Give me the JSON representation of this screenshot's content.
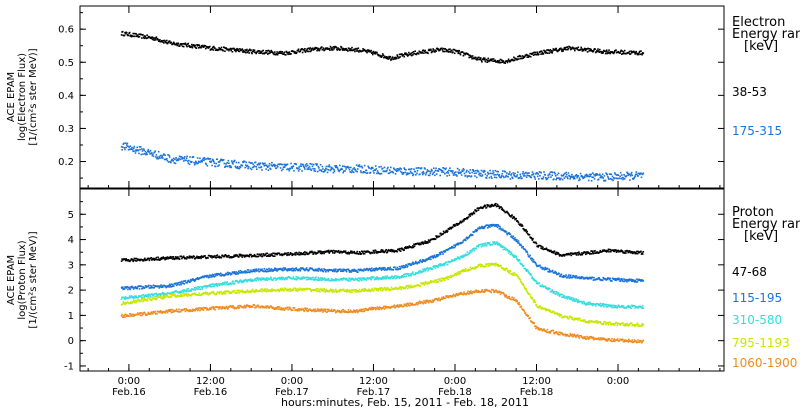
{
  "chart_data": [
    {
      "type": "scatter",
      "panel": "electron",
      "ylabel_lines": [
        "ACE EPAM",
        "log(Electron Flux)",
        "[1/(cm²s ster MeV)]"
      ],
      "ylim": [
        0.12,
        0.67
      ],
      "yticks": [
        0.2,
        0.3,
        0.4,
        0.5,
        0.6
      ],
      "ytick_labels": [
        "0.2",
        "0.3",
        "0.4",
        "0.5",
        "0.6"
      ],
      "legend_title_lines": [
        "Electron",
        "Energy ran",
        "[keV]"
      ],
      "legend_placement": "right",
      "series": [
        {
          "name": "38-53",
          "color": "#000000",
          "x": [
            -0.1,
            0.3,
            0.5,
            1.0,
            1.5,
            1.9,
            2.2,
            2.5,
            2.8,
            3.0,
            3.2,
            3.5,
            3.8,
            4.0,
            4.3,
            4.6,
            5.0,
            5.4,
            5.8,
            6.3
          ],
          "y": [
            0.59,
            0.575,
            0.56,
            0.545,
            0.535,
            0.53,
            0.54,
            0.545,
            0.54,
            0.53,
            0.515,
            0.53,
            0.54,
            0.535,
            0.51,
            0.505,
            0.53,
            0.545,
            0.535,
            0.53
          ]
        },
        {
          "name": "175-315",
          "color": "#1a73d9",
          "x": [
            -0.1,
            0.3,
            0.5,
            1.0,
            1.5,
            1.9,
            2.2,
            2.5,
            2.8,
            3.0,
            3.2,
            3.5,
            3.8,
            4.0,
            4.3,
            4.6,
            5.0,
            5.4,
            5.8,
            6.3
          ],
          "y": [
            0.25,
            0.225,
            0.21,
            0.2,
            0.19,
            0.185,
            0.185,
            0.18,
            0.18,
            0.178,
            0.175,
            0.172,
            0.172,
            0.17,
            0.165,
            0.162,
            0.16,
            0.158,
            0.155,
            0.16
          ]
        }
      ]
    },
    {
      "type": "scatter",
      "panel": "proton",
      "ylabel_lines": [
        "ACE EPAM",
        "log(Proton Flux)",
        "[1/(cm²s ster MeV)]"
      ],
      "ylim": [
        -1.2,
        6.0
      ],
      "yticks": [
        -1,
        0,
        1,
        2,
        3,
        4,
        5
      ],
      "ytick_labels": [
        "-1",
        "0",
        "1",
        "2",
        "3",
        "4",
        "5"
      ],
      "legend_title_lines": [
        "Proton",
        "Energy ran",
        "[keV]"
      ],
      "legend_placement": "right",
      "series": [
        {
          "name": "47-68",
          "color": "#000000",
          "x": [
            -0.1,
            0.5,
            1.0,
            1.5,
            1.9,
            2.2,
            2.5,
            2.8,
            3.0,
            3.3,
            3.5,
            3.7,
            3.9,
            4.1,
            4.3,
            4.5,
            4.75,
            5.0,
            5.3,
            5.6,
            5.9,
            6.3
          ],
          "y": [
            3.2,
            3.3,
            3.35,
            3.4,
            3.45,
            3.5,
            3.55,
            3.5,
            3.55,
            3.6,
            3.8,
            4.0,
            4.4,
            4.8,
            5.3,
            5.4,
            4.8,
            3.8,
            3.4,
            3.5,
            3.6,
            3.5
          ]
        },
        {
          "name": "115-195",
          "color": "#1a73d9",
          "x": [
            -0.1,
            0.5,
            1.0,
            1.5,
            1.9,
            2.2,
            2.5,
            2.8,
            3.0,
            3.3,
            3.5,
            3.7,
            3.9,
            4.1,
            4.3,
            4.5,
            4.75,
            5.0,
            5.3,
            5.6,
            5.9,
            6.3
          ],
          "y": [
            2.1,
            2.2,
            2.6,
            2.8,
            2.85,
            2.85,
            2.8,
            2.8,
            2.85,
            2.9,
            3.1,
            3.3,
            3.6,
            4.0,
            4.5,
            4.6,
            4.0,
            3.0,
            2.6,
            2.5,
            2.45,
            2.4
          ]
        },
        {
          "name": "310-580",
          "color": "#33dddd",
          "x": [
            -0.1,
            0.5,
            1.0,
            1.5,
            1.9,
            2.2,
            2.5,
            2.8,
            3.0,
            3.3,
            3.5,
            3.7,
            3.9,
            4.1,
            4.3,
            4.5,
            4.75,
            5.0,
            5.3,
            5.6,
            5.9,
            6.3
          ],
          "y": [
            1.7,
            1.9,
            2.2,
            2.45,
            2.5,
            2.5,
            2.45,
            2.45,
            2.5,
            2.55,
            2.7,
            2.9,
            3.1,
            3.4,
            3.8,
            3.9,
            3.3,
            2.3,
            1.8,
            1.5,
            1.4,
            1.35
          ]
        },
        {
          "name": "795-1193",
          "color": "#c8e600",
          "x": [
            -0.1,
            0.5,
            1.0,
            1.5,
            1.9,
            2.2,
            2.5,
            2.8,
            3.0,
            3.3,
            3.5,
            3.7,
            3.9,
            4.1,
            4.3,
            4.5,
            4.75,
            5.0,
            5.3,
            5.6,
            5.9,
            6.3
          ],
          "y": [
            1.5,
            1.8,
            1.9,
            2.0,
            2.05,
            2.05,
            2.0,
            2.0,
            2.05,
            2.1,
            2.2,
            2.35,
            2.5,
            2.8,
            3.0,
            3.05,
            2.6,
            1.4,
            1.0,
            0.8,
            0.7,
            0.65
          ]
        },
        {
          "name": "1060-1900",
          "color": "#f08c1e",
          "x": [
            -0.1,
            0.5,
            1.0,
            1.5,
            1.9,
            2.2,
            2.5,
            2.8,
            3.0,
            3.3,
            3.5,
            3.7,
            3.9,
            4.1,
            4.3,
            4.5,
            4.75,
            5.0,
            5.3,
            5.6,
            5.9,
            6.3
          ],
          "y": [
            1.0,
            1.2,
            1.3,
            1.4,
            1.3,
            1.25,
            1.2,
            1.2,
            1.3,
            1.4,
            1.5,
            1.6,
            1.75,
            1.9,
            2.0,
            2.0,
            1.6,
            0.5,
            0.3,
            0.15,
            0.05,
            0.0
          ]
        }
      ]
    }
  ],
  "x_axis": {
    "xlim": [
      -0.6,
      7.3
    ],
    "ticks": [
      0,
      1,
      2,
      3,
      4,
      5,
      6
    ],
    "tick_labels_time": [
      "0:00",
      "12:00",
      "0:00",
      "12:00",
      "0:00",
      "12:00",
      "0:00"
    ],
    "tick_labels_date": [
      "Feb.16",
      "Feb.16",
      "Feb.17",
      "Feb.17",
      "Feb.18",
      "Feb.18",
      ""
    ],
    "xlabel": "hours:minutes, Feb. 15, 2011 - Feb. 18, 2011"
  }
}
